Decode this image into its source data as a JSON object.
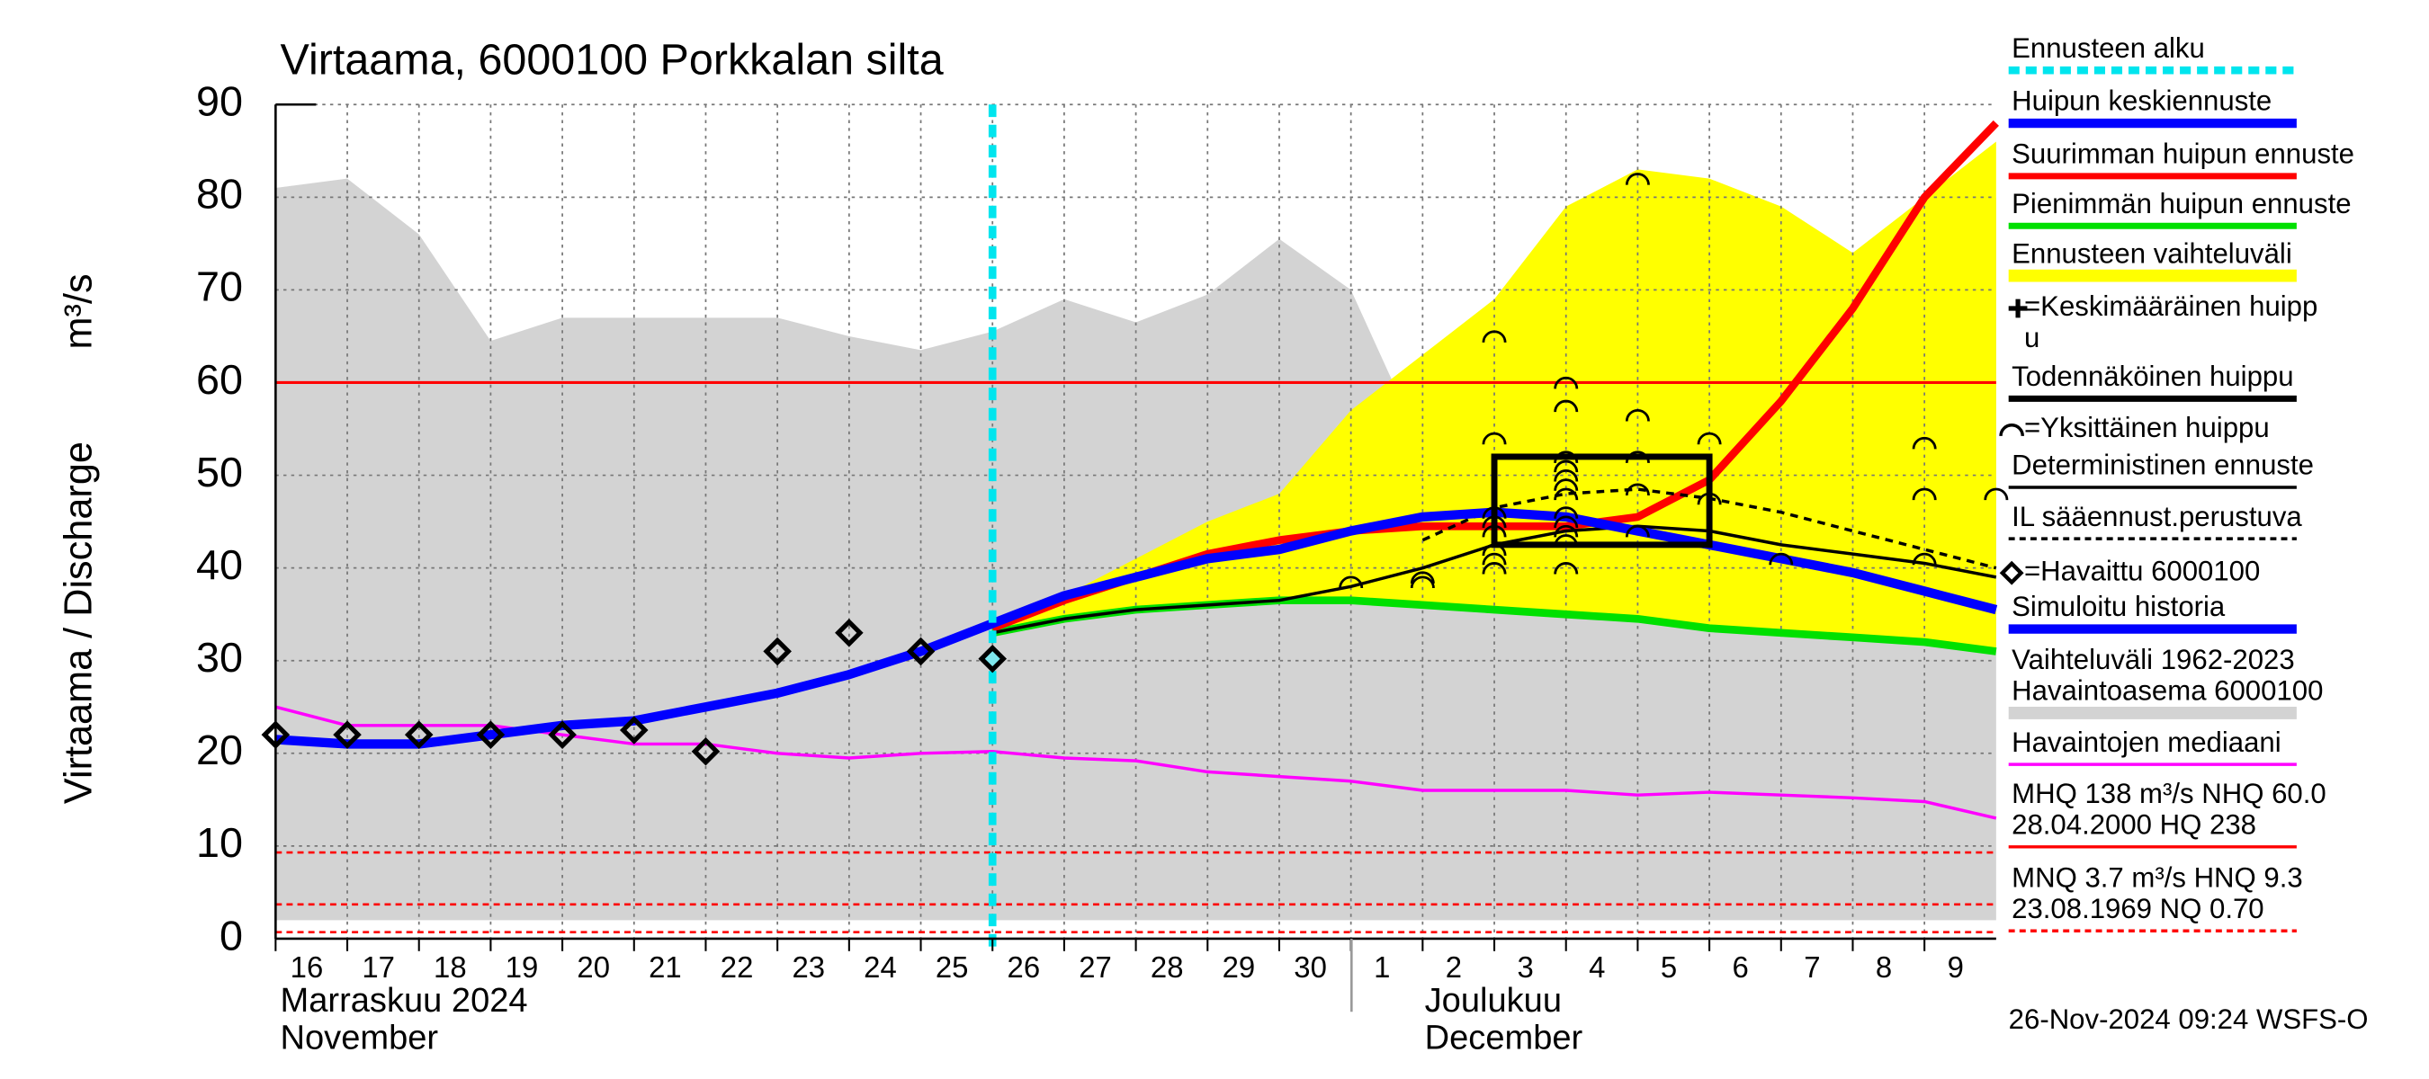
{
  "chart_data": {
    "type": "line",
    "title": "Virtaama, 6000100 Porkkalan silta",
    "y_label": "Virtaama / Discharge",
    "y_unit": "m³/s",
    "month_labels": [
      "Marraskuu 2024",
      "November",
      "Joulukuu",
      "December"
    ],
    "timestamp": "26-Nov-2024 09:24 WSFS-O",
    "xlim": [
      0,
      24
    ],
    "ylim": [
      0,
      90
    ],
    "yticks": [
      0,
      10,
      20,
      30,
      40,
      50,
      60,
      70,
      80,
      90
    ],
    "xticks": [
      {
        "value": 0,
        "label": "16"
      },
      {
        "value": 1,
        "label": "17"
      },
      {
        "value": 2,
        "label": "18"
      },
      {
        "value": 3,
        "label": "19"
      },
      {
        "value": 4,
        "label": "20"
      },
      {
        "value": 5,
        "label": "21"
      },
      {
        "value": 6,
        "label": "22"
      },
      {
        "value": 7,
        "label": "23"
      },
      {
        "value": 8,
        "label": "24"
      },
      {
        "value": 9,
        "label": "25"
      },
      {
        "value": 10,
        "label": "26"
      },
      {
        "value": 11,
        "label": "27"
      },
      {
        "value": 12,
        "label": "28"
      },
      {
        "value": 13,
        "label": "29"
      },
      {
        "value": 14,
        "label": "30"
      },
      {
        "value": 15,
        "label": "1"
      },
      {
        "value": 16,
        "label": "2"
      },
      {
        "value": 17,
        "label": "3"
      },
      {
        "value": 18,
        "label": "4"
      },
      {
        "value": 19,
        "label": "5"
      },
      {
        "value": 20,
        "label": "6"
      },
      {
        "value": 21,
        "label": "7"
      },
      {
        "value": 22,
        "label": "8"
      },
      {
        "value": 23,
        "label": "9"
      }
    ],
    "grid": true,
    "forecast_start": 10,
    "hlines": [
      {
        "value": 60,
        "color": "#ff0000",
        "style": "solid"
      },
      {
        "value": 9.3,
        "color": "#ff0000",
        "style": "dashed"
      },
      {
        "value": 3.7,
        "color": "#ff0000",
        "style": "dashed"
      },
      {
        "value": 0.7,
        "color": "#ff0000",
        "style": "dashed"
      }
    ],
    "series": [
      {
        "kind": "band",
        "color": "#d3d3d3",
        "x": [
          0,
          1,
          2,
          3,
          4,
          5,
          6,
          7,
          8,
          9,
          10,
          11,
          12,
          13,
          14,
          15,
          16,
          17,
          18,
          19,
          20,
          21,
          22,
          23,
          24
        ],
        "upper": [
          81,
          82,
          76,
          64.5,
          67,
          67,
          67,
          67,
          65,
          63.5,
          65.5,
          69,
          66.5,
          69.5,
          75.5,
          70,
          53,
          52,
          51,
          55,
          58,
          61,
          59,
          65,
          80
        ],
        "lower": [
          2,
          2,
          2,
          2,
          2,
          2,
          2,
          2,
          2,
          2,
          2,
          2,
          2,
          2,
          2,
          2,
          2,
          2,
          2,
          2,
          2,
          2,
          2,
          2,
          2
        ]
      },
      {
        "kind": "band",
        "color": "#ffff00",
        "x": [
          10,
          11,
          12,
          13,
          14,
          15,
          16,
          17,
          18,
          19,
          20,
          21,
          22,
          23,
          24
        ],
        "upper": [
          33,
          37,
          41,
          45,
          48,
          57,
          63,
          69,
          79,
          83,
          82,
          79,
          74,
          80,
          86
        ],
        "lower": [
          33,
          34.5,
          35.5,
          36,
          36.5,
          36.5,
          36,
          35.5,
          35,
          34.5,
          33.5,
          33,
          32.5,
          32,
          31
        ]
      },
      {
        "kind": "line",
        "color": "#ff00ff",
        "width": 2,
        "x": [
          0,
          1,
          2,
          3,
          4,
          5,
          6,
          7,
          8,
          9,
          10,
          11,
          12,
          13,
          14,
          15,
          16,
          17,
          18,
          19,
          20,
          21,
          22,
          23,
          24
        ],
        "values": [
          25,
          23,
          23,
          23,
          22,
          21,
          21,
          20,
          19.5,
          20,
          20.2,
          19.5,
          19.2,
          18,
          17.5,
          17,
          16,
          16,
          16,
          15.5,
          15.8,
          15.5,
          15.2,
          14.8,
          13
        ]
      },
      {
        "kind": "line",
        "color": "#00e000",
        "width": 5,
        "x": [
          10,
          11,
          12,
          13,
          14,
          15,
          16,
          17,
          18,
          19,
          20,
          21,
          22,
          23,
          24
        ],
        "values": [
          33,
          34.5,
          35.5,
          36,
          36.5,
          36.5,
          36,
          35.5,
          35,
          34.5,
          33.5,
          33,
          32.5,
          32,
          31
        ]
      },
      {
        "kind": "line",
        "color": "#ff0000",
        "width": 5,
        "x": [
          10,
          11,
          12,
          13,
          14,
          15,
          16,
          17,
          18,
          19,
          20,
          21,
          22,
          23,
          24
        ],
        "values": [
          33.5,
          36.5,
          39,
          41.5,
          43,
          44,
          44.5,
          44.5,
          44.5,
          45.5,
          49.5,
          58,
          68,
          80,
          88
        ]
      },
      {
        "kind": "line",
        "color": "#000000",
        "width": 2,
        "x": [
          10,
          11,
          12,
          13,
          14,
          15,
          16,
          17,
          18,
          19,
          20,
          21,
          22,
          23,
          24
        ],
        "values": [
          33,
          34.5,
          35.5,
          36,
          36.5,
          38,
          40,
          42.5,
          44,
          44.5,
          44,
          42.5,
          41.5,
          40.5,
          39
        ]
      },
      {
        "kind": "line",
        "color": "#000000",
        "width": 2,
        "dash": true,
        "x": [
          16,
          17,
          18,
          19,
          20,
          21,
          22,
          23,
          24
        ],
        "values": [
          43,
          46.5,
          48,
          48.5,
          47.5,
          46,
          44,
          42,
          40
        ]
      },
      {
        "kind": "line",
        "color": "#0000ff",
        "width": 6,
        "x": [
          0,
          1,
          2,
          3,
          4,
          5,
          6,
          7,
          8,
          9,
          10,
          11,
          12,
          13,
          14,
          15,
          16,
          17,
          18,
          19,
          20,
          21,
          22,
          23,
          24
        ],
        "values": [
          21.5,
          21,
          21,
          22,
          23,
          23.5,
          25,
          26.5,
          28.5,
          31,
          34,
          37,
          39,
          41,
          42,
          44,
          45.5,
          46,
          45.5,
          44,
          42.5,
          41,
          39.5,
          37.5,
          35.5
        ]
      }
    ],
    "probable_peak": {
      "x": [
        17,
        20
      ],
      "y": [
        42.5,
        52
      ],
      "color": "#000000"
    },
    "peaks": {
      "x": [
        15,
        16,
        16,
        17,
        17,
        17,
        17,
        17,
        17,
        17,
        17,
        18,
        18,
        18,
        18,
        18,
        18,
        18,
        18,
        18,
        18,
        18,
        18,
        19,
        19,
        19,
        19,
        19,
        20,
        20,
        21,
        23,
        23,
        23,
        24
      ],
      "y": [
        38.5,
        39,
        38.5,
        40,
        41,
        42,
        44,
        45,
        46,
        54,
        65,
        40,
        43,
        44,
        45,
        46,
        48,
        49,
        50,
        51,
        52,
        57.5,
        60,
        44,
        48.5,
        52,
        56.5,
        82,
        47.5,
        54,
        41,
        41,
        48,
        53.5,
        48
      ]
    },
    "observations": {
      "x": [
        0,
        1,
        2,
        3,
        4,
        5,
        6,
        7,
        8,
        9,
        10
      ],
      "y": [
        22,
        22,
        22,
        22,
        22,
        22.5,
        20.2,
        31,
        33,
        31,
        30.2
      ]
    },
    "legend": [
      {
        "lines": [
          "Ennusteen alku"
        ],
        "color": "#00e5ee",
        "style": "dashed"
      },
      {
        "lines": [
          "Huipun keskiennuste"
        ],
        "color": "#0000ff",
        "style": "thick"
      },
      {
        "lines": [
          "Suurimman huipun ennuste"
        ],
        "color": "#ff0000",
        "style": "solid"
      },
      {
        "lines": [
          "Pienimmän huipun ennuste"
        ],
        "color": "#00e000",
        "style": "solid"
      },
      {
        "lines": [
          "Ennusteen vaihteluväli"
        ],
        "color": "#ffff00",
        "style": "wide"
      },
      {
        "lines": [
          "=Keskimääräinen huipp",
          "u"
        ],
        "icon": "plus"
      },
      {
        "lines": [
          "Todennäköinen huippu"
        ],
        "color": "#000000",
        "style": "solid"
      },
      {
        "lines": [
          "=Yksittäinen huippu"
        ],
        "icon": "arc"
      },
      {
        "lines": [
          "Deterministinen ennuste"
        ],
        "color": "#000000",
        "style": "thin"
      },
      {
        "lines": [
          "IL sääennust.perustuva"
        ],
        "color": "#000000",
        "style": "thin-dashed"
      },
      {
        "lines": [
          "=Havaittu 6000100"
        ],
        "icon": "diamond"
      },
      {
        "lines": [
          "Simuloitu historia"
        ],
        "color": "#0000ff",
        "style": "thick"
      },
      {
        "lines": [
          "Vaihteluväli 1962-2023",
          " Havaintoasema 6000100"
        ],
        "color": "#d3d3d3",
        "style": "wide"
      },
      {
        "lines": [
          "Havaintojen mediaani"
        ],
        "color": "#ff00ff",
        "style": "thin"
      },
      {
        "lines": [
          "MHQ  138 m³/s NHQ 60.0",
          "28.04.2000 HQ  238"
        ],
        "color": "#ff0000",
        "style": "thin"
      },
      {
        "lines": [
          "MNQ  3.7 m³/s HNQ  9.3",
          "23.08.1969 NQ 0.70"
        ],
        "color": "#ff0000",
        "style": "thin-dashed"
      }
    ]
  }
}
